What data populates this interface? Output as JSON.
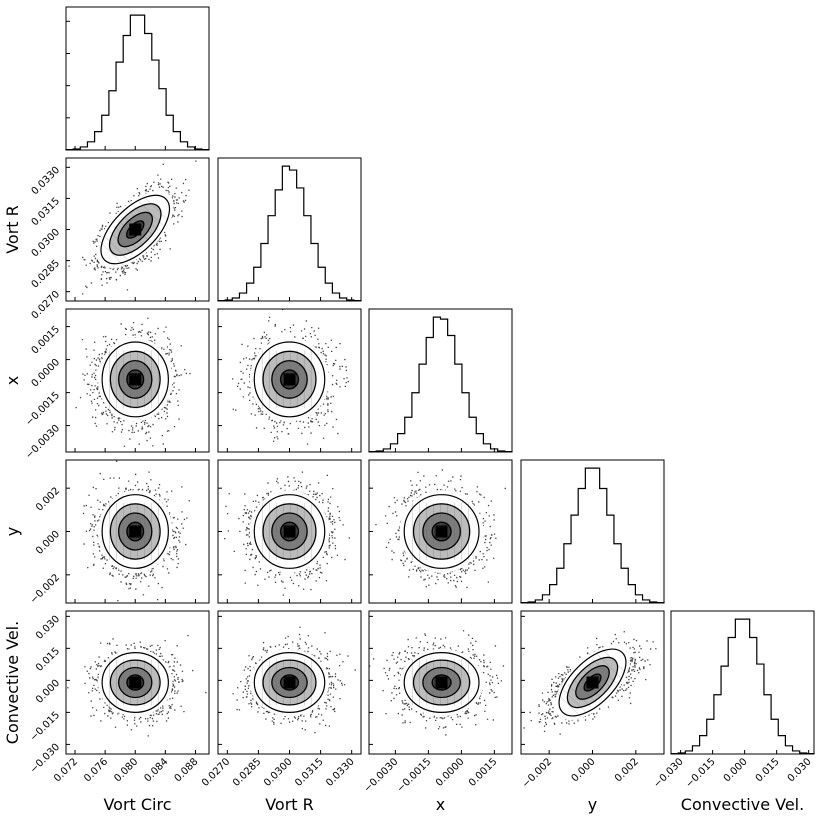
{
  "chart_data": {
    "type": "corner",
    "title": "",
    "parameters": [
      {
        "name": "Vort Circ",
        "center": 0.08,
        "sigma": 0.0022,
        "range": [
          0.0708,
          0.0898
        ],
        "ticks": [
          "0.072",
          "0.076",
          "0.080",
          "0.084",
          "0.088"
        ],
        "tick_values": [
          0.072,
          0.076,
          0.08,
          0.084,
          0.088
        ]
      },
      {
        "name": "Vort R",
        "center": 0.03,
        "sigma": 0.00085,
        "range": [
          0.02655,
          0.03345
        ],
        "ticks": [
          "0.0270",
          "0.0285",
          "0.0300",
          "0.0315",
          "0.0330"
        ],
        "tick_values": [
          0.027,
          0.0285,
          0.03,
          0.0315,
          0.033
        ]
      },
      {
        "name": "x",
        "center": -0.0009,
        "sigma": 0.00085,
        "range": [
          -0.0042,
          0.0023
        ],
        "ticks": [
          "−0.0030",
          "−0.0015",
          "0.0000",
          "0.0015"
        ],
        "tick_values": [
          -0.003,
          -0.0015,
          0.0,
          0.0015
        ]
      },
      {
        "name": "y",
        "center": 0.0,
        "sigma": 0.00085,
        "range": [
          -0.0033,
          0.0033
        ],
        "ticks": [
          "−0.002",
          "0.000",
          "0.002"
        ],
        "tick_values": [
          -0.002,
          0.0,
          0.002
        ]
      },
      {
        "name": "Convective Vel.",
        "center": -0.001,
        "sigma": 0.007,
        "range": [
          -0.0345,
          0.0325
        ],
        "ticks": [
          "−0.030",
          "−0.015",
          "0.000",
          "0.015",
          "0.030"
        ],
        "tick_values": [
          -0.03,
          -0.015,
          0.0,
          0.015,
          0.03
        ]
      }
    ],
    "correlations": [
      {
        "pair": [
          "Vort Circ",
          "Vort R"
        ],
        "rho": 0.6
      },
      {
        "pair": [
          "y",
          "Convective Vel."
        ],
        "rho": 0.6
      }
    ],
    "histogram_bins": 20,
    "contour_levels": [
      0.5,
      1.0,
      1.5,
      2.0
    ],
    "marginal_histograms": [
      {
        "parameter": "Vort Circ",
        "counts": [
          0.2,
          0.5,
          1.5,
          4,
          9,
          17,
          29,
          43,
          56,
          66,
          66,
          57,
          44,
          30,
          17,
          9,
          4,
          1.5,
          0.5,
          0.2
        ]
      },
      {
        "parameter": "Vort R",
        "counts": [
          0.2,
          0.5,
          1.5,
          4,
          9,
          17,
          29,
          43,
          56,
          68,
          66,
          57,
          43,
          29,
          17,
          9,
          4,
          1.5,
          0.5,
          0.2
        ]
      },
      {
        "parameter": "x",
        "counts": [
          0.2,
          0.5,
          1.5,
          4,
          9,
          17,
          29,
          43,
          56,
          66,
          65,
          57,
          43,
          29,
          17,
          9,
          4,
          1.5,
          0.5,
          0.2
        ]
      },
      {
        "parameter": "y",
        "counts": [
          0.2,
          0.5,
          1.5,
          4,
          9,
          17,
          29,
          43,
          56,
          66,
          66,
          56,
          43,
          29,
          17,
          9,
          4,
          1.5,
          0.5,
          0.2
        ]
      },
      {
        "parameter": "Convective Vel.",
        "counts": [
          0.2,
          0.5,
          1.5,
          4,
          9,
          17,
          29,
          43,
          57,
          66,
          66,
          57,
          44,
          29,
          17,
          9,
          4,
          1.5,
          0.5,
          0.2
        ]
      }
    ],
    "colors": {
      "hist_line": "#000000",
      "scatter": "#000000",
      "contour_line": "#000000"
    }
  }
}
